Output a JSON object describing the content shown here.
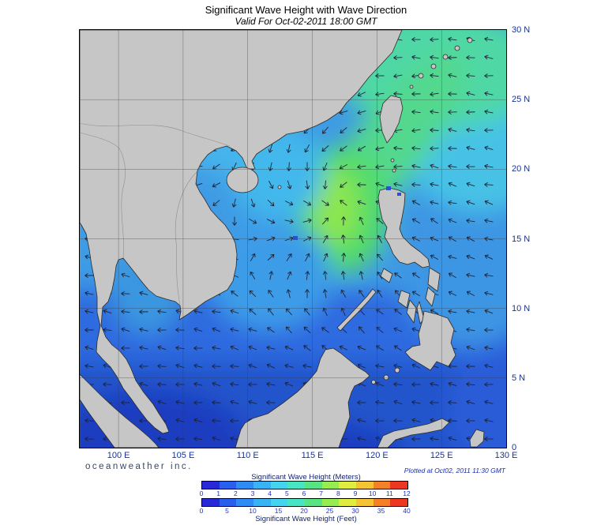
{
  "header": {
    "title": "Significant Wave Height with Wave Direction",
    "subtitle": "Valid For Oct-02-2011 18:00 GMT"
  },
  "map": {
    "lat_labels": [
      "30 N",
      "25 N",
      "20 N",
      "15 N",
      "10 N",
      "5 N",
      "0"
    ],
    "lon_labels": [
      "100 E",
      "105 E",
      "110 E",
      "115 E",
      "120 E",
      "125 E",
      "130 E"
    ]
  },
  "footer": {
    "brand": "oceanweather inc.",
    "plotted": "Plotted at Oct02, 2011 11:30 GMT"
  },
  "legend": {
    "meters_title": "Significant Wave Height (Meters)",
    "feet_title": "Significant Wave Height (Feet)",
    "meters_ticks": [
      "0",
      "1",
      "2",
      "3",
      "4",
      "5",
      "6",
      "7",
      "8",
      "9",
      "10",
      "11",
      "12"
    ],
    "feet_ticks": [
      "0",
      "5",
      "10",
      "15",
      "20",
      "25",
      "30",
      "35",
      "40"
    ],
    "colors": [
      "#2828d8",
      "#2860ec",
      "#2e8cf4",
      "#38b4f4",
      "#44d4f0",
      "#48e4c4",
      "#58e484",
      "#96ec50",
      "#e0ec40",
      "#f4c434",
      "#f48028",
      "#ec3820"
    ]
  },
  "chart_data": {
    "type": "heatmap",
    "title": "Significant Wave Height with Wave Direction",
    "valid_time": "Oct-02-2011 18:00 GMT",
    "plot_time": "Oct02, 2011 11:30 GMT",
    "region": {
      "lon_ticks_deg_e": [
        100,
        105,
        110,
        115,
        120,
        125,
        130
      ],
      "lat_ticks_deg_n": [
        30,
        25,
        20,
        15,
        10,
        5,
        0
      ]
    },
    "colorbar_meters": {
      "label": "Significant Wave Height (Meters)",
      "ticks": [
        0,
        1,
        2,
        3,
        4,
        5,
        6,
        7,
        8,
        9,
        10,
        11,
        12
      ]
    },
    "colorbar_feet": {
      "label": "Significant Wave Height (Feet)",
      "ticks": [
        0,
        5,
        10,
        15,
        20,
        25,
        30,
        35,
        40
      ]
    },
    "palette": [
      "#2828d8",
      "#2860ec",
      "#2e8cf4",
      "#38b4f4",
      "#44d4f0",
      "#48e4c4",
      "#58e484",
      "#96ec50",
      "#e0ec40",
      "#f4c434",
      "#f48028",
      "#ec3820"
    ],
    "overlay": "wave direction arrows on ocean grid",
    "observed_maximum": "yellow-green core (approx 5 m / 16 ft) centered near 115E, 18N in the northern South China Sea, with a green band extending northeast through the Taiwan Strait",
    "land_color": "#c6c6c6"
  }
}
